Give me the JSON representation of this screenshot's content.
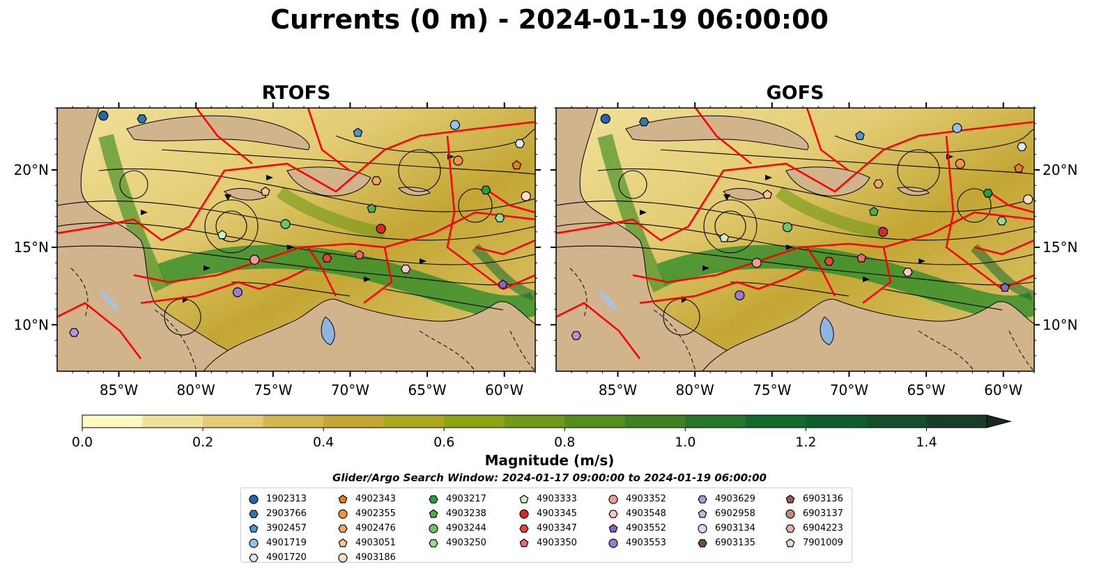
{
  "title": "Currents (0 m) - 2024-01-19 06:00:00",
  "panels": [
    {
      "title": "RTOFS"
    },
    {
      "title": "GOFS"
    }
  ],
  "map": {
    "lon_ticks": [
      "85°W",
      "80°W",
      "75°W",
      "70°W",
      "65°W",
      "60°W"
    ],
    "lat_ticks": [
      "20°N",
      "15°N",
      "10°N"
    ],
    "colors": {
      "land": "#d2b48c",
      "boundary": "#ff0000",
      "streamline": "#000000",
      "lake": "#8fb4e0"
    }
  },
  "colorbar": {
    "label": "Magnitude (m/s)",
    "ticks": [
      "0.0",
      "0.2",
      "0.4",
      "0.6",
      "0.8",
      "1.0",
      "1.2",
      "1.4"
    ],
    "range": [
      0,
      1.5
    ],
    "extend": "max",
    "colors": [
      "#fdf7c0",
      "#f1e29a",
      "#e3cc74",
      "#d4b64f",
      "#c3a634",
      "#aaa61d",
      "#8ca312",
      "#6f9a17",
      "#568e1e",
      "#3e8222",
      "#267528",
      "#12692c",
      "#0f5c2c",
      "#144e2a",
      "#183f26",
      "#1b3122",
      "#1c261c"
    ]
  },
  "search_window": "Glider/Argo Search Window: 2024-01-17 09:00:00 to 2024-01-19 06:00:00",
  "legend": {
    "columns": [
      [
        {
          "id": "1902313",
          "color": "#1f66b0",
          "shape": "circle"
        },
        {
          "id": "2903766",
          "color": "#2f78b8",
          "shape": "hexagon"
        },
        {
          "id": "3902457",
          "color": "#4a97d6",
          "shape": "pentagon"
        },
        {
          "id": "4901719",
          "color": "#8fc2ec",
          "shape": "circle"
        },
        {
          "id": "4901720",
          "color": "#d7ebfa",
          "shape": "hexagon"
        }
      ],
      [
        {
          "id": "4902343",
          "color": "#f07d12",
          "shape": "pentagon"
        },
        {
          "id": "4902355",
          "color": "#f5923a",
          "shape": "circle"
        },
        {
          "id": "4902476",
          "color": "#f9a75d",
          "shape": "hexagon"
        },
        {
          "id": "4903051",
          "color": "#fcc68f",
          "shape": "pentagon"
        },
        {
          "id": "4903186",
          "color": "#fde0c0",
          "shape": "circle"
        }
      ],
      [
        {
          "id": "4903217",
          "color": "#2c9e3c",
          "shape": "hexagon"
        },
        {
          "id": "4903238",
          "color": "#49b24b",
          "shape": "pentagon"
        },
        {
          "id": "4903244",
          "color": "#6cc46a",
          "shape": "circle"
        },
        {
          "id": "4903250",
          "color": "#98da8f",
          "shape": "hexagon"
        }
      ],
      [
        {
          "id": "4903333",
          "color": "#c9f2c3",
          "shape": "pentagon"
        },
        {
          "id": "4903345",
          "color": "#d72a28",
          "shape": "circle"
        },
        {
          "id": "4903347",
          "color": "#e2463f",
          "shape": "hexagon"
        },
        {
          "id": "4903350",
          "color": "#ee6a66",
          "shape": "pentagon"
        }
      ],
      [
        {
          "id": "4903352",
          "color": "#f29a95",
          "shape": "circle"
        },
        {
          "id": "4903548",
          "color": "#f9c7c5",
          "shape": "hexagon"
        },
        {
          "id": "4903552",
          "color": "#8a63c4",
          "shape": "pentagon"
        },
        {
          "id": "4903553",
          "color": "#9e7bcf",
          "shape": "circle"
        }
      ],
      [
        {
          "id": "4903629",
          "color": "#b294dc",
          "shape": "hexagon"
        },
        {
          "id": "6902958",
          "color": "#c9b2e8",
          "shape": "pentagon"
        },
        {
          "id": "6903134",
          "color": "#e2d3f5",
          "shape": "circle"
        },
        {
          "id": "6903135",
          "color": "#7b4a3a",
          "shape": "hexagon"
        }
      ],
      [
        {
          "id": "6903136",
          "color": "#9a5e52",
          "shape": "pentagon"
        },
        {
          "id": "6903137",
          "color": "#c08c80",
          "shape": "circle"
        },
        {
          "id": "6904223",
          "color": "#e3b4a7",
          "shape": "hexagon"
        },
        {
          "id": "7901009",
          "color": "#f7d6cb",
          "shape": "pentagon"
        }
      ]
    ]
  }
}
